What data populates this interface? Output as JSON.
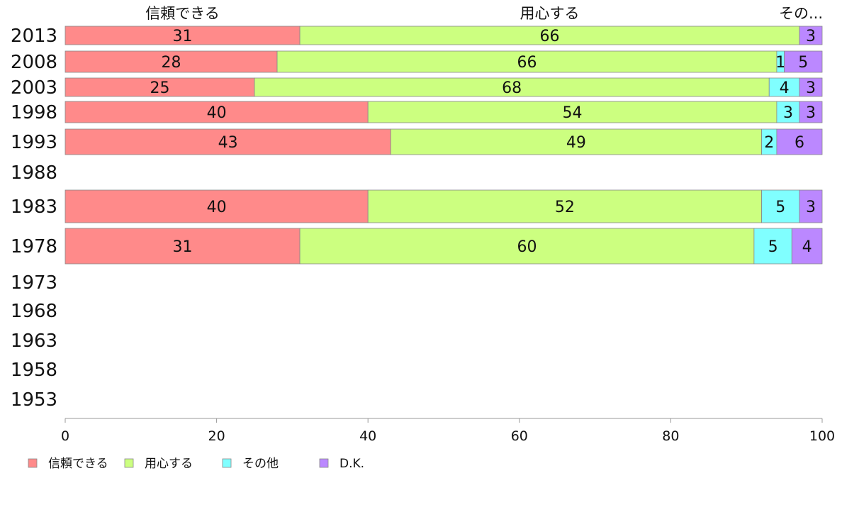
{
  "chart_data": {
    "type": "bar",
    "orientation": "horizontal",
    "stacked": true,
    "categories": [
      "2013",
      "2008",
      "2003",
      "1998",
      "1993",
      "1988",
      "1983",
      "1978",
      "1973",
      "1968",
      "1963",
      "1958",
      "1953"
    ],
    "series": [
      {
        "name": "信頼できる",
        "color": "#ff8a8a",
        "values": [
          31,
          28,
          25,
          40,
          43,
          null,
          40,
          31,
          null,
          null,
          null,
          null,
          null
        ]
      },
      {
        "name": "用心する",
        "color": "#ccff80",
        "values": [
          66,
          66,
          68,
          54,
          49,
          null,
          52,
          60,
          null,
          null,
          null,
          null,
          null
        ]
      },
      {
        "name": "その他",
        "color": "#80ffff",
        "values": [
          0,
          1,
          4,
          3,
          2,
          null,
          5,
          5,
          null,
          null,
          null,
          null,
          null
        ]
      },
      {
        "name": "D.K.",
        "color": "#bb88ff",
        "values": [
          3,
          5,
          3,
          3,
          6,
          null,
          3,
          4,
          null,
          null,
          null,
          null,
          null
        ]
      }
    ],
    "top_labels": [
      "信頼できる",
      "用心する",
      "その..."
    ],
    "xlim": [
      0,
      100
    ],
    "xticks": [
      "0",
      "20",
      "40",
      "60",
      "80",
      "100"
    ],
    "legend_position": "bottom-left",
    "grid": false
  }
}
